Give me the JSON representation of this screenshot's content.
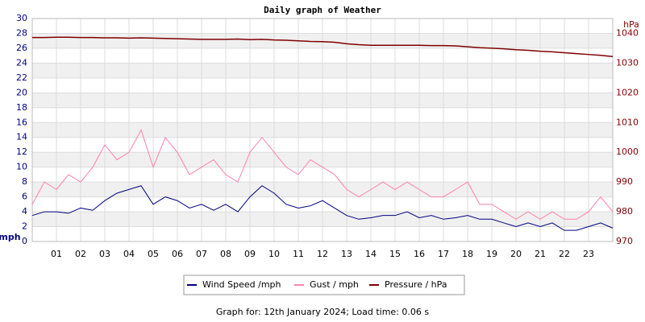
{
  "chart_data": {
    "type": "line",
    "title": "Daily graph of Weather",
    "y_label": "mph",
    "y2_label": "hPa",
    "footer": "Graph for: 12th January 2024; Load time: 0.06 s",
    "x": [
      0,
      0.5,
      1,
      1.5,
      2,
      2.5,
      3,
      3.5,
      4,
      4.5,
      5,
      5.5,
      6,
      6.5,
      7,
      7.5,
      8,
      8.5,
      9,
      9.5,
      10,
      10.5,
      11,
      11.5,
      12,
      12.5,
      13,
      13.5,
      14,
      14.5,
      15,
      15.5,
      16,
      16.5,
      17,
      17.5,
      18,
      18.5,
      19,
      19.5,
      20,
      20.5,
      21,
      21.5,
      22,
      22.5,
      23,
      23.5,
      24
    ],
    "xlim": [
      0,
      24
    ],
    "xticks": [
      {
        "value": 1,
        "label": "01"
      },
      {
        "value": 2,
        "label": "02"
      },
      {
        "value": 3,
        "label": "03"
      },
      {
        "value": 4,
        "label": "04"
      },
      {
        "value": 5,
        "label": "05"
      },
      {
        "value": 6,
        "label": "06"
      },
      {
        "value": 7,
        "label": "07"
      },
      {
        "value": 8,
        "label": "08"
      },
      {
        "value": 9,
        "label": "09"
      },
      {
        "value": 10,
        "label": "10"
      },
      {
        "value": 11,
        "label": "11"
      },
      {
        "value": 12,
        "label": "12"
      },
      {
        "value": 13,
        "label": "13"
      },
      {
        "value": 14,
        "label": "14"
      },
      {
        "value": 15,
        "label": "15"
      },
      {
        "value": 16,
        "label": "16"
      },
      {
        "value": 17,
        "label": "17"
      },
      {
        "value": 18,
        "label": "18"
      },
      {
        "value": 19,
        "label": "19"
      },
      {
        "value": 20,
        "label": "20"
      },
      {
        "value": 21,
        "label": "21"
      },
      {
        "value": 22,
        "label": "22"
      },
      {
        "value": 23,
        "label": "23"
      }
    ],
    "ylim": [
      0,
      30
    ],
    "yticks": [
      0,
      2,
      4,
      6,
      8,
      10,
      12,
      14,
      16,
      18,
      20,
      22,
      24,
      26,
      28,
      30
    ],
    "y2lim": [
      970,
      1045
    ],
    "y2ticks": [
      970,
      980,
      990,
      1000,
      1010,
      1020,
      1030,
      1040
    ],
    "grid": true,
    "series": [
      {
        "name": "Gust / mph",
        "color": "#ff80a8",
        "values": [
          5,
          8,
          7,
          9,
          8,
          10,
          13,
          11,
          12,
          15,
          10,
          14,
          12,
          9,
          10,
          11,
          9,
          8,
          12,
          14,
          12,
          10,
          9,
          11,
          10,
          9,
          7,
          6,
          7,
          8,
          7,
          8,
          7,
          6,
          6,
          7,
          8,
          5,
          5,
          4,
          3,
          4,
          3,
          4,
          3,
          3,
          4,
          6,
          4
        ]
      },
      {
        "name": "Wind Speed /mph",
        "color": "#000080",
        "values": [
          3.5,
          4,
          4,
          3.8,
          4.5,
          4.2,
          5.5,
          6.5,
          7,
          7.5,
          5,
          6,
          5.5,
          4.5,
          5,
          4.2,
          5,
          4,
          6,
          7.5,
          6.5,
          5,
          4.5,
          4.8,
          5.5,
          4.5,
          3.5,
          3,
          3.2,
          3.5,
          3.5,
          4,
          3.2,
          3.5,
          3,
          3.2,
          3.5,
          3,
          3,
          2.5,
          2,
          2.5,
          2,
          2.5,
          1.5,
          1.5,
          2,
          2.5,
          1.8
        ]
      },
      {
        "name": "Pressure / hPa",
        "color": "#800000",
        "axis": "y2",
        "values": [
          1038.6,
          1038.6,
          1038.7,
          1038.7,
          1038.6,
          1038.6,
          1038.5,
          1038.5,
          1038.4,
          1038.5,
          1038.4,
          1038.3,
          1038.2,
          1038.1,
          1038.0,
          1038.0,
          1038.0,
          1038.1,
          1037.9,
          1038.0,
          1037.8,
          1037.7,
          1037.5,
          1037.3,
          1037.2,
          1037.0,
          1036.5,
          1036.2,
          1036.0,
          1036.0,
          1036.0,
          1036.0,
          1036.0,
          1035.9,
          1035.9,
          1035.8,
          1035.5,
          1035.2,
          1035.0,
          1034.8,
          1034.5,
          1034.3,
          1034.0,
          1033.8,
          1033.5,
          1033.2,
          1032.9,
          1032.6,
          1032.2
        ]
      }
    ],
    "legend_order": [
      1,
      0,
      2
    ]
  }
}
